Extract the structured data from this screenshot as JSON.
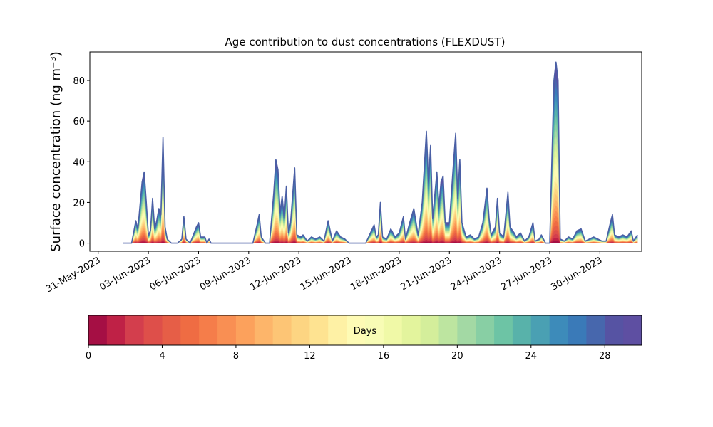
{
  "chart_data": {
    "type": "area",
    "title": "Age contribution to dust concentrations (FLEXDUST)",
    "xlabel": "",
    "ylabel": "Surface concentration (ng m⁻³)",
    "ylim": [
      -4,
      94
    ],
    "xlim": [
      "2023-05-30T12:00",
      "2023-07-02T12:00"
    ],
    "grid": false,
    "x_ticks": [
      "31-May-2023",
      "03-Jun-2023",
      "06-Jun-2023",
      "09-Jun-2023",
      "12-Jun-2023",
      "15-Jun-2023",
      "18-Jun-2023",
      "21-Jun-2023",
      "24-Jun-2023",
      "27-Jun-2023",
      "30-Jun-2023"
    ],
    "y_ticks": [
      0,
      20,
      40,
      60,
      80
    ],
    "series_description": "Stacked contributions by particle age, 30 one-day bins (0-30 days), plotted in the Spectral colormap; outer envelope = total concentration",
    "total": [
      [
        "2023-06-01T12:00",
        0
      ],
      [
        "2023-06-02T00:00",
        0
      ],
      [
        "2023-06-02T06:00",
        11
      ],
      [
        "2023-06-02T09:00",
        7
      ],
      [
        "2023-06-02T15:00",
        30
      ],
      [
        "2023-06-02T18:00",
        35
      ],
      [
        "2023-06-02T21:00",
        20
      ],
      [
        "2023-06-03T00:00",
        4
      ],
      [
        "2023-06-03T03:00",
        6
      ],
      [
        "2023-06-03T06:00",
        22
      ],
      [
        "2023-06-03T09:00",
        7
      ],
      [
        "2023-06-03T12:00",
        11
      ],
      [
        "2023-06-03T15:00",
        17
      ],
      [
        "2023-06-03T18:00",
        14
      ],
      [
        "2023-06-03T21:00",
        52
      ],
      [
        "2023-06-04T00:00",
        8
      ],
      [
        "2023-06-04T03:00",
        2
      ],
      [
        "2023-06-04T09:00",
        0
      ],
      [
        "2023-06-04T18:00",
        0
      ],
      [
        "2023-06-05T00:00",
        2
      ],
      [
        "2023-06-05T03:00",
        13
      ],
      [
        "2023-06-05T06:00",
        2
      ],
      [
        "2023-06-05T12:00",
        0
      ],
      [
        "2023-06-05T21:00",
        8
      ],
      [
        "2023-06-06T00:00",
        10
      ],
      [
        "2023-06-06T03:00",
        3
      ],
      [
        "2023-06-06T09:00",
        3
      ],
      [
        "2023-06-06T12:00",
        0
      ],
      [
        "2023-06-06T15:00",
        2
      ],
      [
        "2023-06-06T18:00",
        0
      ],
      [
        "2023-06-09T00:00",
        0
      ],
      [
        "2023-06-09T06:00",
        0
      ],
      [
        "2023-06-09T12:00",
        9
      ],
      [
        "2023-06-09T15:00",
        14
      ],
      [
        "2023-06-09T18:00",
        3
      ],
      [
        "2023-06-10T00:00",
        0
      ],
      [
        "2023-06-10T06:00",
        0
      ],
      [
        "2023-06-10T12:00",
        25
      ],
      [
        "2023-06-10T15:00",
        41
      ],
      [
        "2023-06-10T18:00",
        36
      ],
      [
        "2023-06-10T21:00",
        15
      ],
      [
        "2023-06-11T00:00",
        23
      ],
      [
        "2023-06-11T03:00",
        12
      ],
      [
        "2023-06-11T06:00",
        28
      ],
      [
        "2023-06-11T09:00",
        5
      ],
      [
        "2023-06-11T12:00",
        10
      ],
      [
        "2023-06-11T18:00",
        37
      ],
      [
        "2023-06-11T21:00",
        4
      ],
      [
        "2023-06-12T03:00",
        3
      ],
      [
        "2023-06-12T06:00",
        4
      ],
      [
        "2023-06-12T12:00",
        1
      ],
      [
        "2023-06-12T18:00",
        3
      ],
      [
        "2023-06-13T00:00",
        2
      ],
      [
        "2023-06-13T06:00",
        3
      ],
      [
        "2023-06-13T12:00",
        1
      ],
      [
        "2023-06-13T18:00",
        11
      ],
      [
        "2023-06-14T00:00",
        1
      ],
      [
        "2023-06-14T06:00",
        6
      ],
      [
        "2023-06-14T12:00",
        3
      ],
      [
        "2023-06-14T18:00",
        2
      ],
      [
        "2023-06-15T00:00",
        0
      ],
      [
        "2023-06-15T12:00",
        0
      ],
      [
        "2023-06-16T00:00",
        0
      ],
      [
        "2023-06-16T12:00",
        9
      ],
      [
        "2023-06-16T15:00",
        3
      ],
      [
        "2023-06-16T18:00",
        4
      ],
      [
        "2023-06-16T21:00",
        20
      ],
      [
        "2023-06-17T00:00",
        3
      ],
      [
        "2023-06-17T06:00",
        2
      ],
      [
        "2023-06-17T12:00",
        7
      ],
      [
        "2023-06-17T18:00",
        3
      ],
      [
        "2023-06-18T00:00",
        5
      ],
      [
        "2023-06-18T06:00",
        13
      ],
      [
        "2023-06-18T09:00",
        2
      ],
      [
        "2023-06-18T15:00",
        10
      ],
      [
        "2023-06-18T21:00",
        17
      ],
      [
        "2023-06-19T03:00",
        4
      ],
      [
        "2023-06-19T09:00",
        20
      ],
      [
        "2023-06-19T15:00",
        55
      ],
      [
        "2023-06-19T18:00",
        30
      ],
      [
        "2023-06-19T21:00",
        48
      ],
      [
        "2023-06-20T00:00",
        12
      ],
      [
        "2023-06-20T06:00",
        35
      ],
      [
        "2023-06-20T09:00",
        18
      ],
      [
        "2023-06-20T12:00",
        30
      ],
      [
        "2023-06-20T15:00",
        33
      ],
      [
        "2023-06-20T18:00",
        10
      ],
      [
        "2023-06-21T00:00",
        10
      ],
      [
        "2023-06-21T06:00",
        40
      ],
      [
        "2023-06-21T09:00",
        54
      ],
      [
        "2023-06-21T12:00",
        22
      ],
      [
        "2023-06-21T15:00",
        41
      ],
      [
        "2023-06-21T18:00",
        10
      ],
      [
        "2023-06-22T00:00",
        3
      ],
      [
        "2023-06-22T06:00",
        4
      ],
      [
        "2023-06-22T12:00",
        2
      ],
      [
        "2023-06-22T18:00",
        3
      ],
      [
        "2023-06-23T00:00",
        10
      ],
      [
        "2023-06-23T06:00",
        27
      ],
      [
        "2023-06-23T09:00",
        12
      ],
      [
        "2023-06-23T12:00",
        4
      ],
      [
        "2023-06-23T18:00",
        8
      ],
      [
        "2023-06-23T21:00",
        22
      ],
      [
        "2023-06-24T00:00",
        5
      ],
      [
        "2023-06-24T06:00",
        3
      ],
      [
        "2023-06-24T12:00",
        25
      ],
      [
        "2023-06-24T15:00",
        8
      ],
      [
        "2023-06-24T21:00",
        5
      ],
      [
        "2023-06-25T00:00",
        3
      ],
      [
        "2023-06-25T06:00",
        5
      ],
      [
        "2023-06-25T12:00",
        1
      ],
      [
        "2023-06-25T18:00",
        3
      ],
      [
        "2023-06-26T00:00",
        10
      ],
      [
        "2023-06-26T03:00",
        1
      ],
      [
        "2023-06-26T09:00",
        2
      ],
      [
        "2023-06-26T12:00",
        4
      ],
      [
        "2023-06-26T18:00",
        0
      ],
      [
        "2023-06-27T00:00",
        0
      ],
      [
        "2023-06-27T06:00",
        80
      ],
      [
        "2023-06-27T09:00",
        89
      ],
      [
        "2023-06-27T12:00",
        80
      ],
      [
        "2023-06-27T15:00",
        2
      ],
      [
        "2023-06-27T21:00",
        1
      ],
      [
        "2023-06-28T03:00",
        3
      ],
      [
        "2023-06-28T09:00",
        2
      ],
      [
        "2023-06-28T15:00",
        6
      ],
      [
        "2023-06-28T21:00",
        7
      ],
      [
        "2023-06-29T03:00",
        1
      ],
      [
        "2023-06-29T09:00",
        2
      ],
      [
        "2023-06-29T15:00",
        3
      ],
      [
        "2023-06-29T21:00",
        2
      ],
      [
        "2023-06-30T03:00",
        1
      ],
      [
        "2023-06-30T09:00",
        1
      ],
      [
        "2023-06-30T15:00",
        10
      ],
      [
        "2023-06-30T18:00",
        14
      ],
      [
        "2023-06-30T21:00",
        4
      ],
      [
        "2023-07-01T03:00",
        3
      ],
      [
        "2023-07-01T09:00",
        4
      ],
      [
        "2023-07-01T15:00",
        3
      ],
      [
        "2023-07-01T21:00",
        6
      ],
      [
        "2023-07-02T00:00",
        1
      ],
      [
        "2023-07-02T06:00",
        4
      ]
    ],
    "colorbar": {
      "label": "Days",
      "range": [
        0,
        30
      ],
      "ticks": [
        0,
        4,
        8,
        12,
        16,
        20,
        24,
        28
      ],
      "colors": [
        "#a50f44",
        "#bf2146",
        "#d33e4d",
        "#de4f4a",
        "#e65e47",
        "#ef6c43",
        "#f57d4a",
        "#f98f53",
        "#fca15c",
        "#fdb56a",
        "#fdc575",
        "#fdd582",
        "#fee391",
        "#fef1a5",
        "#fefbb5",
        "#f8fcb5",
        "#f0f9a7",
        "#e3f49d",
        "#d4ee9b",
        "#bde5a0",
        "#a3d9a4",
        "#88cfa4",
        "#6dc4a5",
        "#58b2aa",
        "#4aa0b3",
        "#3d8bba",
        "#3a7ab8",
        "#4767ad",
        "#5653a3",
        "#5e4fa2"
      ]
    }
  }
}
